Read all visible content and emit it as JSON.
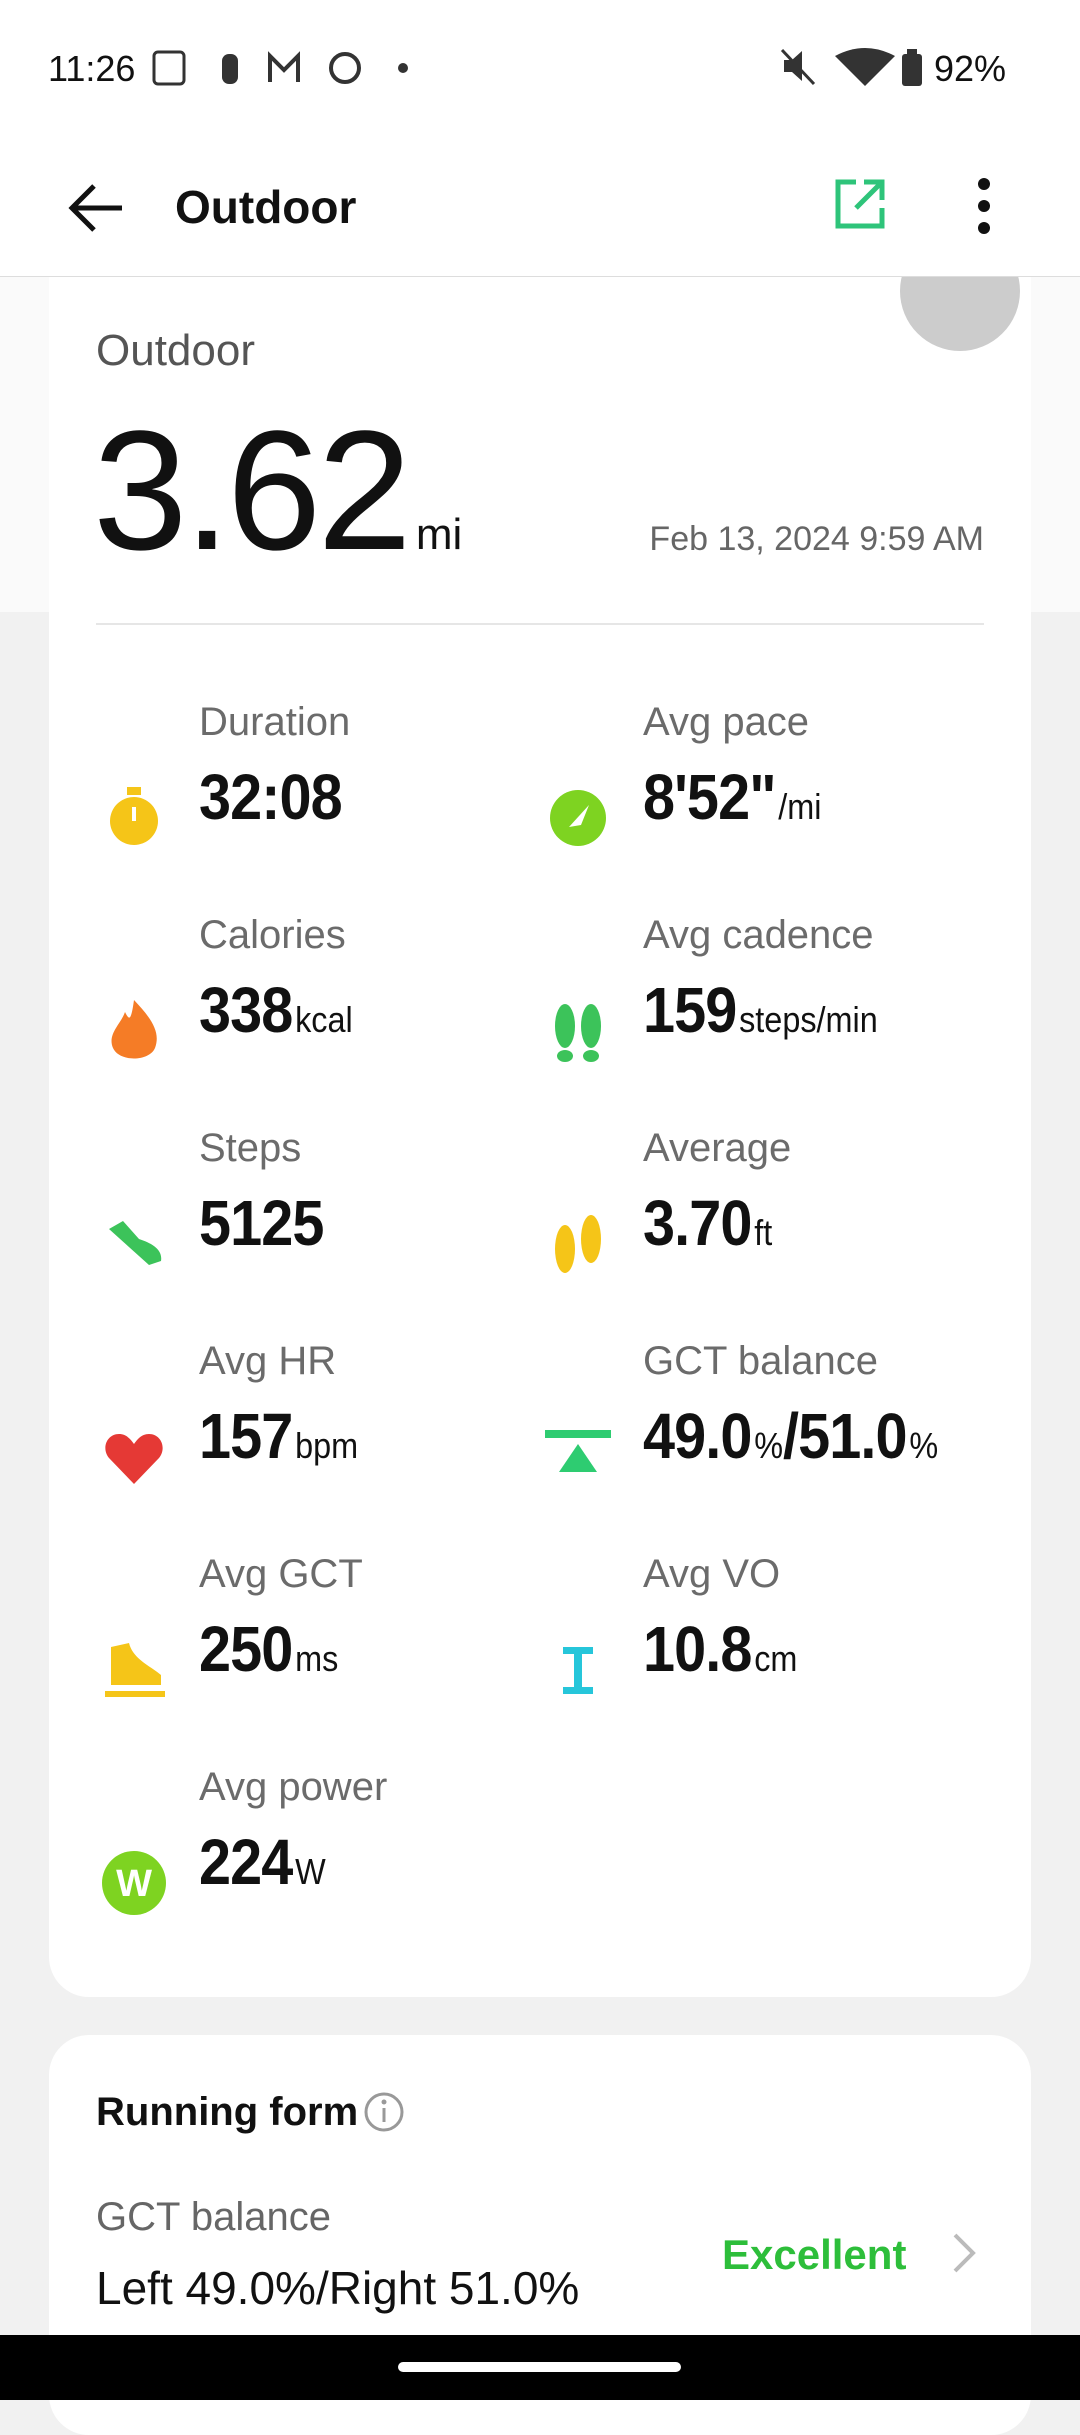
{
  "status_bar": {
    "time": "11:26",
    "battery": "92%"
  },
  "app_bar": {
    "title": "Outdoor"
  },
  "summary": {
    "label": "Outdoor",
    "distance": "3.62",
    "unit": "mi",
    "date": "Feb 13, 2024 9:59 AM"
  },
  "metrics": [
    {
      "label": "Duration",
      "parts": [
        {
          "value": "32:08"
        }
      ]
    },
    {
      "label": "Avg pace",
      "parts": [
        {
          "value": "8'52\"",
          "unit": "/mi"
        }
      ]
    },
    {
      "label": "Calories",
      "parts": [
        {
          "value": "338",
          "unit": "kcal"
        }
      ]
    },
    {
      "label": "Avg cadence",
      "parts": [
        {
          "value": "159",
          "unit": "steps/min"
        }
      ]
    },
    {
      "label": "Steps",
      "parts": [
        {
          "value": "5125"
        }
      ]
    },
    {
      "label": "Average",
      "parts": [
        {
          "value": "3.70",
          "unit": "ft"
        }
      ]
    },
    {
      "label": "Avg HR",
      "parts": [
        {
          "value": "157",
          "unit": "bpm"
        }
      ]
    },
    {
      "label": "GCT balance",
      "parts": [
        {
          "value": "49.0",
          "unit": "%"
        },
        {
          "value": "/51.0",
          "unit": "%"
        }
      ]
    },
    {
      "label": "Avg GCT",
      "parts": [
        {
          "value": "250",
          "unit": "ms"
        }
      ]
    },
    {
      "label": "Avg VO",
      "parts": [
        {
          "value": "10.8",
          "unit": "cm"
        }
      ]
    },
    {
      "label": "Avg power",
      "parts": [
        {
          "value": "224",
          "unit": "W"
        }
      ]
    }
  ],
  "running_form": {
    "title": "Running form",
    "item_label": "GCT balance",
    "item_value": "Left 49.0%/Right 51.0%",
    "rating": "Excellent"
  }
}
